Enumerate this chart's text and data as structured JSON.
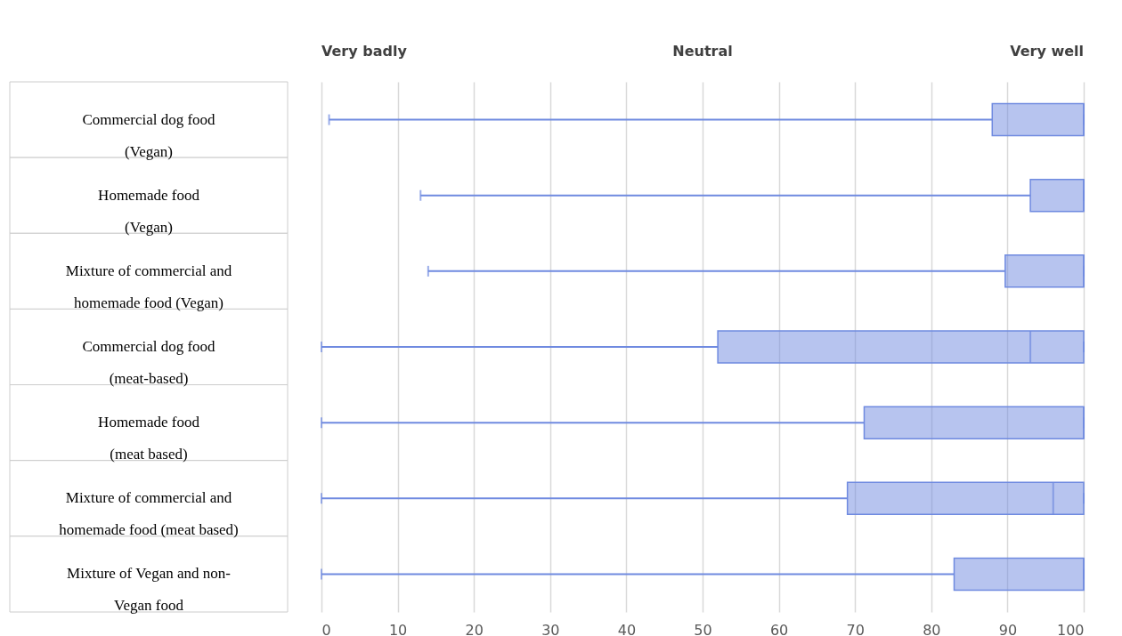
{
  "chart_data": {
    "type": "box",
    "orientation": "horizontal",
    "categories": [
      "Commercial dog food (Vegan)",
      "Homemade food (Vegan)",
      "Mixture of commercial and homemade food (Vegan)",
      "Commercial dog food (meat-based)",
      "Homemade food (meat based)",
      "Mixture of commercial and homemade food (meat based)",
      "Mixture of Vegan and non-Vegan food"
    ],
    "boxes": [
      {
        "low": 1,
        "q1": 88,
        "median": 100,
        "q3": 100,
        "high": 100
      },
      {
        "low": 13,
        "q1": 93,
        "median": 100,
        "q3": 100,
        "high": 100
      },
      {
        "low": 14,
        "q1": 89.7,
        "median": 100,
        "q3": 100,
        "high": 100
      },
      {
        "low": 0,
        "q1": 52,
        "median": 93,
        "q3": 100,
        "high": 100
      },
      {
        "low": 0,
        "q1": 71.2,
        "median": 100,
        "q3": 100,
        "high": 100
      },
      {
        "low": 0,
        "q1": 69,
        "median": 96,
        "q3": 100,
        "high": 100
      },
      {
        "low": 0,
        "q1": 83,
        "median": 100,
        "q3": 100,
        "high": 100
      }
    ],
    "color": "#6f8ae0",
    "xlim": [
      0,
      100
    ],
    "xticks": [
      0,
      10,
      20,
      30,
      40,
      50,
      60,
      70,
      80,
      90,
      100
    ],
    "annotations": [
      "Very badly",
      "Neutral",
      "Very well"
    ],
    "grid": "x"
  }
}
